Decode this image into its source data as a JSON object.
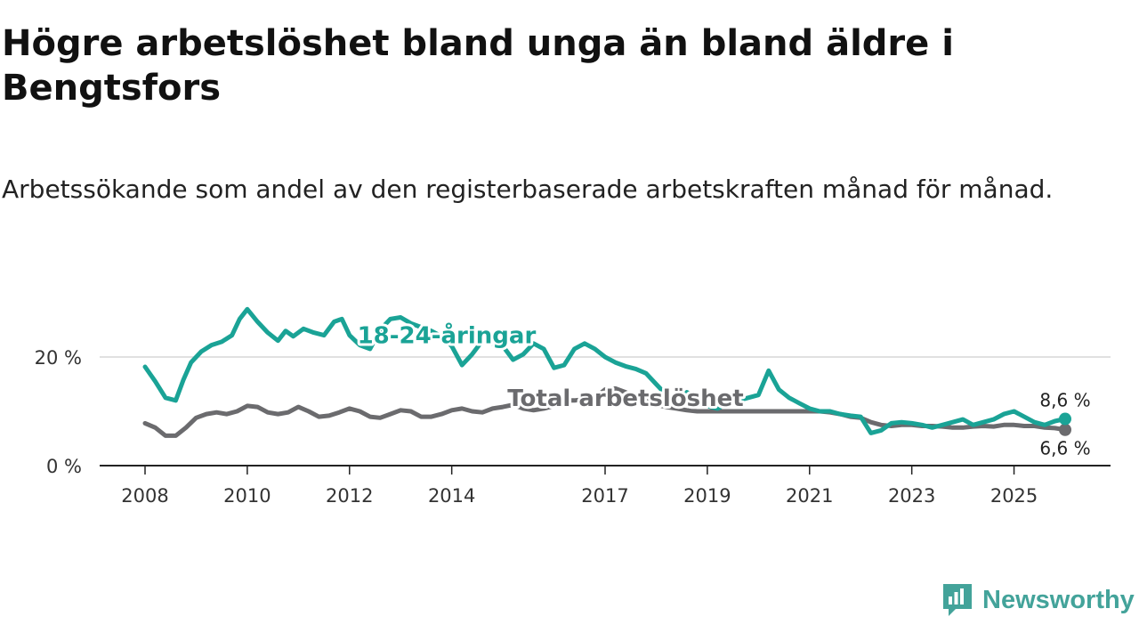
{
  "title": "Högre arbetslöshet bland unga än bland äldre i Bengtsfors",
  "subtitle": "Arbetssökande som andel av den registerbaserade arbetskraften månad för månad.",
  "brand": {
    "name": "Newsworthy",
    "color": "#43a39a"
  },
  "chart_data": {
    "type": "line",
    "title": "Högre arbetslöshet bland unga än bland äldre i Bengtsfors",
    "xlabel": "",
    "ylabel": "",
    "x_range": [
      2008.0,
      2026.0
    ],
    "ylim": [
      0,
      30
    ],
    "y_ticks": [
      0,
      20
    ],
    "y_tick_labels": [
      "0 %",
      "20 %"
    ],
    "x_ticks": [
      2008,
      2010,
      2012,
      2014,
      2017,
      2019,
      2021,
      2023,
      2025
    ],
    "x_tick_positions": [
      2008.0,
      2010.0,
      2012.0,
      2014.0,
      2017.0,
      2019.0,
      2021.0,
      2023.0,
      2025.0
    ],
    "x_tick_labels": [
      "2008",
      "2010",
      "2012",
      "2014",
      "2017",
      "2019",
      "2021",
      "2023",
      "2025"
    ],
    "grid": "horizontal",
    "series": [
      {
        "name": "18-24-åringar",
        "color": "#1aa396",
        "label_at": [
          2013.9,
          24.0
        ],
        "end_value": 8.6,
        "end_label": "8,6 %",
        "x": [
          2008.0,
          2008.2,
          2008.4,
          2008.6,
          2008.75,
          2008.9,
          2009.1,
          2009.3,
          2009.5,
          2009.7,
          2009.85,
          2010.0,
          2010.2,
          2010.4,
          2010.6,
          2010.75,
          2010.9,
          2011.1,
          2011.3,
          2011.5,
          2011.7,
          2011.85,
          2012.0,
          2012.2,
          2012.4,
          2012.6,
          2012.8,
          2013.0,
          2013.2,
          2013.4,
          2013.6,
          2013.8,
          2014.0,
          2014.2,
          2014.4,
          2014.6,
          2014.8,
          2015.0,
          2015.2,
          2015.4,
          2015.6,
          2015.8,
          2016.0,
          2016.2,
          2016.4,
          2016.6,
          2016.8,
          2017.0,
          2017.2,
          2017.4,
          2017.6,
          2017.8,
          2018.0,
          2018.2,
          2018.4,
          2018.6,
          2018.8,
          2019.0,
          2019.2,
          2019.4,
          2019.6,
          2019.8,
          2020.0,
          2020.2,
          2020.4,
          2020.6,
          2020.8,
          2021.0,
          2021.2,
          2021.4,
          2021.6,
          2021.8,
          2022.0,
          2022.2,
          2022.4,
          2022.6,
          2022.8,
          2023.0,
          2023.2,
          2023.4,
          2023.6,
          2023.8,
          2024.0,
          2024.2,
          2024.4,
          2024.6,
          2024.8,
          2025.0,
          2025.2,
          2025.4,
          2025.6,
          2025.8,
          2026.0
        ],
        "values": [
          18.2,
          15.5,
          12.5,
          12.0,
          15.8,
          19.0,
          21.0,
          22.2,
          22.8,
          24.0,
          27.0,
          28.8,
          26.5,
          24.5,
          23.0,
          24.8,
          23.8,
          25.2,
          24.5,
          24.0,
          26.5,
          27.0,
          24.0,
          22.2,
          21.5,
          25.0,
          27.0,
          27.3,
          26.2,
          25.5,
          24.8,
          23.8,
          22.0,
          18.5,
          20.5,
          23.0,
          22.5,
          22.0,
          19.5,
          20.5,
          22.5,
          21.5,
          18.0,
          18.5,
          21.5,
          22.5,
          21.5,
          20.0,
          19.0,
          18.3,
          17.8,
          17.0,
          15.0,
          13.0,
          11.0,
          13.5,
          12.5,
          11.0,
          10.5,
          11.5,
          12.0,
          12.5,
          13.0,
          17.5,
          14.0,
          12.5,
          11.5,
          10.5,
          10.0,
          10.0,
          9.5,
          9.2,
          9.0,
          6.0,
          6.5,
          7.8,
          8.0,
          7.8,
          7.5,
          7.0,
          7.5,
          8.0,
          8.5,
          7.5,
          8.0,
          8.5,
          9.5,
          10.0,
          9.0,
          8.0,
          7.5,
          8.2,
          8.6
        ]
      },
      {
        "name": "Total arbetslöshet",
        "color": "#6b6b6e",
        "label_at": [
          2017.4,
          12.5
        ],
        "end_value": 6.6,
        "end_label": "6,6 %",
        "x": [
          2008.0,
          2008.2,
          2008.4,
          2008.6,
          2008.8,
          2009.0,
          2009.2,
          2009.4,
          2009.6,
          2009.8,
          2010.0,
          2010.2,
          2010.4,
          2010.6,
          2010.8,
          2011.0,
          2011.2,
          2011.4,
          2011.6,
          2011.8,
          2012.0,
          2012.2,
          2012.4,
          2012.6,
          2012.8,
          2013.0,
          2013.2,
          2013.4,
          2013.6,
          2013.8,
          2014.0,
          2014.2,
          2014.4,
          2014.6,
          2014.8,
          2015.0,
          2015.2,
          2015.4,
          2015.6,
          2015.8,
          2016.0,
          2016.2,
          2016.4,
          2016.6,
          2016.8,
          2017.0,
          2017.2,
          2017.4,
          2017.6,
          2017.8,
          2018.0,
          2018.2,
          2018.4,
          2018.6,
          2018.8,
          2019.0,
          2019.2,
          2019.4,
          2019.6,
          2019.8,
          2020.0,
          2020.2,
          2020.4,
          2020.6,
          2020.8,
          2021.0,
          2021.2,
          2021.4,
          2021.6,
          2021.8,
          2022.0,
          2022.2,
          2022.4,
          2022.6,
          2022.8,
          2023.0,
          2023.2,
          2023.4,
          2023.6,
          2023.8,
          2024.0,
          2024.2,
          2024.4,
          2024.6,
          2024.8,
          2025.0,
          2025.2,
          2025.4,
          2025.6,
          2025.8,
          2026.0
        ],
        "values": [
          7.8,
          7.0,
          5.5,
          5.5,
          7.0,
          8.8,
          9.5,
          9.8,
          9.5,
          10.0,
          11.0,
          10.8,
          9.8,
          9.5,
          9.8,
          10.8,
          10.0,
          9.0,
          9.2,
          9.8,
          10.5,
          10.0,
          9.0,
          8.8,
          9.5,
          10.2,
          10.0,
          9.0,
          9.0,
          9.5,
          10.2,
          10.5,
          10.0,
          9.8,
          10.5,
          10.8,
          11.2,
          10.5,
          10.2,
          10.5,
          11.0,
          12.0,
          12.0,
          12.2,
          12.5,
          14.0,
          14.2,
          13.5,
          12.5,
          12.0,
          11.2,
          10.8,
          10.5,
          10.2,
          10.0,
          10.0,
          10.0,
          10.0,
          10.0,
          10.0,
          10.0,
          10.0,
          10.0,
          10.0,
          10.0,
          10.0,
          10.0,
          9.8,
          9.5,
          9.0,
          8.8,
          8.0,
          7.5,
          7.3,
          7.5,
          7.5,
          7.3,
          7.3,
          7.2,
          7.0,
          7.0,
          7.2,
          7.3,
          7.2,
          7.5,
          7.5,
          7.3,
          7.3,
          7.0,
          6.9,
          6.6
        ]
      }
    ]
  }
}
